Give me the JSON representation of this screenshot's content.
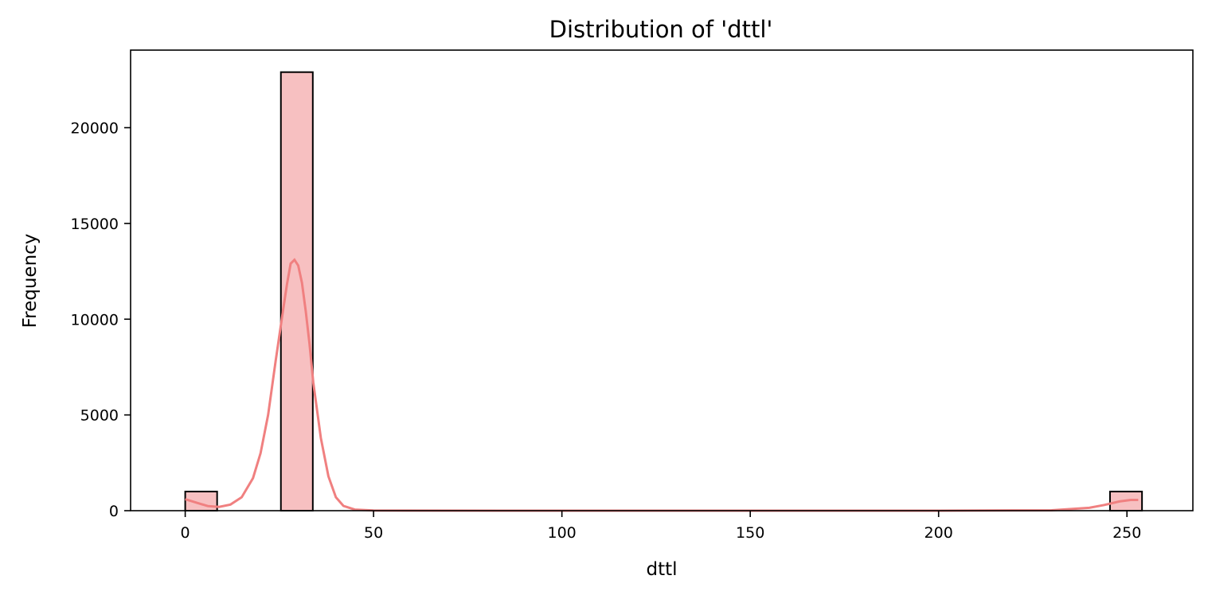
{
  "chart_data": {
    "type": "bar",
    "title": "Distribution of 'dttl'",
    "xlabel": "dttl",
    "ylabel": "Frequency",
    "xlim": [
      -14.5,
      267.5
    ],
    "ylim": [
      0,
      24050
    ],
    "x_ticks": [
      0,
      50,
      100,
      150,
      200,
      250
    ],
    "y_ticks": [
      0,
      5000,
      10000,
      15000,
      20000
    ],
    "bar_fill": "#f7c0c1",
    "bar_edge": "#000000",
    "kde_color": "#f08080",
    "bins": [
      {
        "x0": 0,
        "x1": 8.47,
        "count": 1000
      },
      {
        "x0": 25.4,
        "x1": 33.87,
        "count": 22900
      },
      {
        "x0": 245.5,
        "x1": 254,
        "count": 1000
      }
    ],
    "kde": {
      "x": [
        0,
        3,
        6,
        9,
        12,
        15,
        18,
        20,
        22,
        24,
        26,
        27,
        28,
        29,
        30,
        31,
        32,
        33,
        34,
        36,
        38,
        40,
        42,
        45,
        50,
        100,
        150,
        200,
        230,
        240,
        244,
        248,
        251,
        253
      ],
      "y": [
        600,
        420,
        240,
        200,
        320,
        700,
        1700,
        3000,
        5000,
        7800,
        10500,
        11800,
        12900,
        13100,
        12800,
        11900,
        10400,
        8700,
        6700,
        3800,
        1800,
        700,
        250,
        60,
        10,
        0,
        0,
        0,
        20,
        150,
        300,
        480,
        560,
        560
      ]
    }
  }
}
